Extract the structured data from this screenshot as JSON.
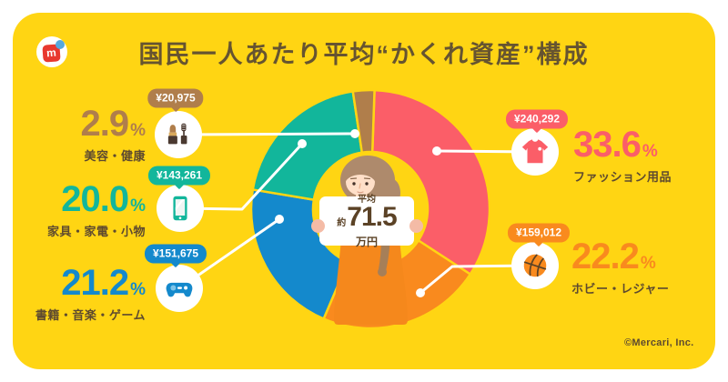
{
  "page": {
    "title": "国民一人あたり平均“かくれ資産”構成",
    "copyright": "©Mercari, Inc."
  },
  "logo": {
    "letter": "m"
  },
  "colors": {
    "card_bg": "#FFD513",
    "title_text": "#665430",
    "label_text": "#5E4A2F",
    "sign_text": "#5B4226",
    "leader_line": "#FFFFFF"
  },
  "units": {
    "percent": "%"
  },
  "center_sign": {
    "line1": "平均",
    "approx": "約",
    "value": "71.5",
    "unit": "万円"
  },
  "chart_data": {
    "type": "pie",
    "subtype": "donut",
    "title": "国民一人あたり平均“かくれ資産”構成",
    "center_label": "平均 約71.5万円",
    "direction": "clockwise",
    "start_angle_deg": 2,
    "legend_position": "callouts-around-donut",
    "segments": [
      {
        "id": "fashion",
        "label": "ファッション用品",
        "pct": "33.6",
        "value": 33.6,
        "amount": "¥240,292",
        "color": "#FB5E68",
        "icon": "tshirt-icon"
      },
      {
        "id": "hobby",
        "label": "ホビー・レジャー",
        "pct": "22.2",
        "value": 22.2,
        "amount": "¥159,012",
        "color": "#F98A1E",
        "icon": "basketball-icon"
      },
      {
        "id": "books",
        "label": "書籍・音楽・ゲーム",
        "pct": "21.2",
        "value": 21.2,
        "amount": "¥151,675",
        "color": "#1489CC",
        "icon": "game-controller-icon"
      },
      {
        "id": "furniture",
        "label": "家具・家電・小物",
        "pct": "20.0",
        "value": 20.0,
        "amount": "¥143,261",
        "color": "#12B69B",
        "icon": "smartphone-icon"
      },
      {
        "id": "beauty",
        "label": "美容・健康",
        "pct": "2.9",
        "value": 2.9,
        "amount": "¥20,975",
        "color": "#B07E4B",
        "icon": "lipstick-icon"
      }
    ]
  }
}
